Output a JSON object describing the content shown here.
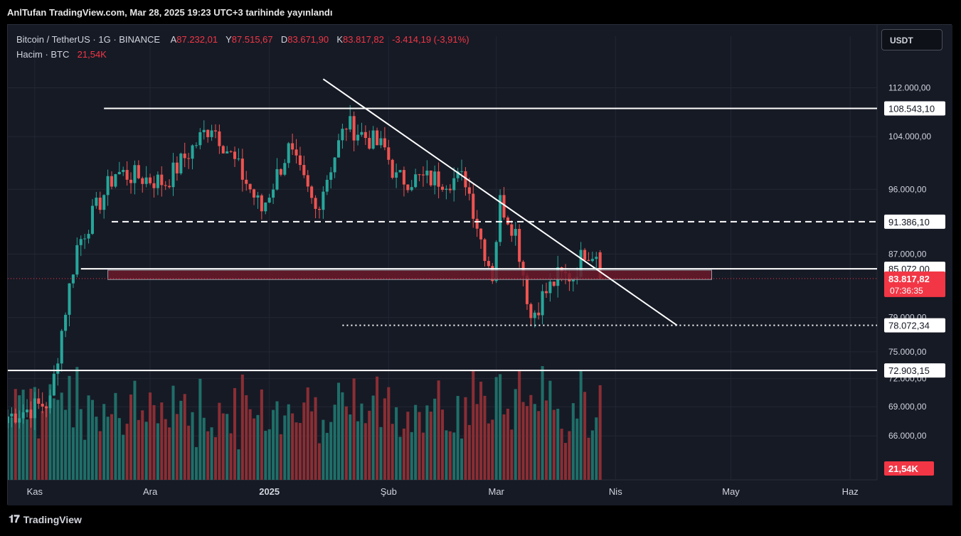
{
  "publish_line": "AnlTufan TradingView.com, Mar 28, 2025 19:23 UTC+3 tarihinde yayınlandı",
  "legend": {
    "symbol": "Bitcoin / TetherUS · 1G · BINANCE",
    "open_label": "A",
    "open": "87.232,01",
    "high_label": "Y",
    "high": "87.515,67",
    "low_label": "D",
    "low": "83.671,90",
    "close_label": "K",
    "close": "83.817,82",
    "change": "-3.414,19 (-3,91%)",
    "volume_label": "Hacim · BTC",
    "volume": "21,54K"
  },
  "currency_button": "USDT",
  "footer_brand": "TradingView",
  "colors": {
    "up": "#26a69a",
    "down": "#ef5350",
    "up_vol": "#1f6e68",
    "down_vol": "#8a2e34",
    "line": "#ffffff",
    "bg": "#161a25",
    "grid": "#232733",
    "text": "#d1d4dc",
    "last_price": "#f23645",
    "zone_fill": "#6b1a2a"
  },
  "chart_data": {
    "type": "candlestick",
    "symbol": "Bitcoin / TetherUS",
    "timeframe": "1G",
    "y_axis": {
      "type": "log",
      "range": [
        63500,
        116000
      ],
      "ticks": [
        "112.000,00",
        "104.000,00",
        "96.000,00",
        "87.000,00",
        "79.000,00",
        "75.000,00",
        "72.000,00",
        "69.000,00",
        "66.000,00"
      ],
      "tick_values": [
        112000,
        104000,
        96000,
        87000,
        79000,
        75000,
        72000,
        69000,
        66000
      ]
    },
    "x_axis": {
      "labels": [
        "Kas",
        "Ara",
        "2025",
        "Şub",
        "Mar",
        "Nis",
        "May",
        "Haz"
      ],
      "dates": [
        "2024-11-01",
        "2024-12-01",
        "2025-01-01",
        "2025-02-01",
        "2025-03-01",
        "2025-04-01",
        "2025-05-01",
        "2025-06-01"
      ],
      "range": [
        "2024-10-25",
        "2025-06-08"
      ]
    },
    "price_labels": [
      {
        "text": "108.543,10",
        "value": 108543.1
      },
      {
        "text": "91.386,10",
        "value": 91386.1
      },
      {
        "text": "85.072,00",
        "value": 85072.0
      },
      {
        "text": "78.072,34",
        "value": 78072.34
      },
      {
        "text": "72.903,15",
        "value": 72903.15
      }
    ],
    "last_price": {
      "text": "83.817,82",
      "countdown": "07:36:35",
      "value": 83817.82
    },
    "volume_label": "21,54K",
    "horizontal_lines": [
      {
        "value": 108543.1,
        "style": "solid",
        "from": "2024-11-19",
        "to": "end"
      },
      {
        "value": 91386.1,
        "style": "dashed",
        "from": "2024-11-21",
        "to": "end"
      },
      {
        "value": 85072.0,
        "style": "solid",
        "from": "2024-11-13",
        "to": "end"
      },
      {
        "value": 78072.34,
        "style": "dotted",
        "from": "2025-01-20",
        "to": "end"
      },
      {
        "value": 72903.15,
        "style": "solid",
        "from": "start",
        "to": "end"
      }
    ],
    "zones": [
      {
        "from": "2024-11-20",
        "to": "2025-04-26",
        "top": 84900,
        "bottom": 83700
      }
    ],
    "trendlines": [
      {
        "from": [
          "2025-01-15",
          113500
        ],
        "to": [
          "2025-04-17",
          78072
        ]
      }
    ],
    "anchors": [
      [
        "2024-10-25",
        68000
      ],
      [
        "2024-11-05",
        69500
      ],
      [
        "2024-11-12",
        88000
      ],
      [
        "2024-11-22",
        98500
      ],
      [
        "2024-12-05",
        97000
      ],
      [
        "2024-12-17",
        106000
      ],
      [
        "2024-12-30",
        93000
      ],
      [
        "2025-01-06",
        102000
      ],
      [
        "2025-01-13",
        93000
      ],
      [
        "2025-01-21",
        106000
      ],
      [
        "2025-01-31",
        102000
      ],
      [
        "2025-02-03",
        97500
      ],
      [
        "2025-02-21",
        97500
      ],
      [
        "2025-02-25",
        89000
      ],
      [
        "2025-02-28",
        84300
      ],
      [
        "2025-03-02",
        94200
      ],
      [
        "2025-03-06",
        90000
      ],
      [
        "2025-03-10",
        79000
      ],
      [
        "2025-03-13",
        81500
      ],
      [
        "2025-03-17",
        84000
      ],
      [
        "2025-03-21",
        84200
      ],
      [
        "2025-03-24",
        87500
      ],
      [
        "2025-03-27",
        87232
      ],
      [
        "2025-03-28",
        83817.82
      ]
    ]
  }
}
